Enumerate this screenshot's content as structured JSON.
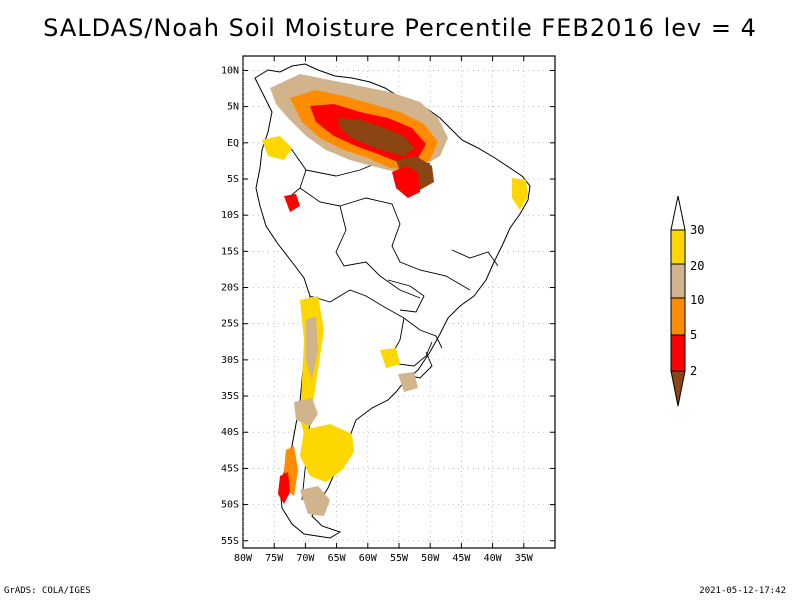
{
  "title": "SALDAS/Noah Soil Moisture Percentile FEB2016 lev = 4",
  "footer": {
    "source": "GrADS: COLA/IGES",
    "timestamp": "2021-05-12-17:42"
  },
  "map": {
    "lon_range": [
      -80,
      -30
    ],
    "lat_range": [
      -56,
      12
    ],
    "lat_ticks": [
      {
        "value": 10,
        "label": "10N"
      },
      {
        "value": 5,
        "label": "5N"
      },
      {
        "value": 0,
        "label": "EQ"
      },
      {
        "value": -5,
        "label": "5S"
      },
      {
        "value": -10,
        "label": "10S"
      },
      {
        "value": -15,
        "label": "15S"
      },
      {
        "value": -20,
        "label": "20S"
      },
      {
        "value": -25,
        "label": "25S"
      },
      {
        "value": -30,
        "label": "30S"
      },
      {
        "value": -35,
        "label": "35S"
      },
      {
        "value": -40,
        "label": "40S"
      },
      {
        "value": -45,
        "label": "45S"
      },
      {
        "value": -50,
        "label": "50S"
      },
      {
        "value": -55,
        "label": "55S"
      }
    ],
    "lon_ticks": [
      {
        "value": -80,
        "label": "80W"
      },
      {
        "value": -75,
        "label": "75W"
      },
      {
        "value": -70,
        "label": "70W"
      },
      {
        "value": -65,
        "label": "65W"
      },
      {
        "value": -60,
        "label": "60W"
      },
      {
        "value": -55,
        "label": "55W"
      },
      {
        "value": -50,
        "label": "50W"
      },
      {
        "value": -45,
        "label": "45W"
      },
      {
        "value": -40,
        "label": "40W"
      },
      {
        "value": -35,
        "label": "35W"
      }
    ],
    "grid": true
  },
  "legend": {
    "labels": [
      "2",
      "5",
      "10",
      "20",
      "30"
    ],
    "colors": {
      "lt2": "#8b4513",
      "2to5": "#ff0000",
      "5to10": "#ff8c00",
      "10to20": "#d2b48c",
      "20to30": "#ffd700",
      "gt30": "#ffffff"
    }
  }
}
